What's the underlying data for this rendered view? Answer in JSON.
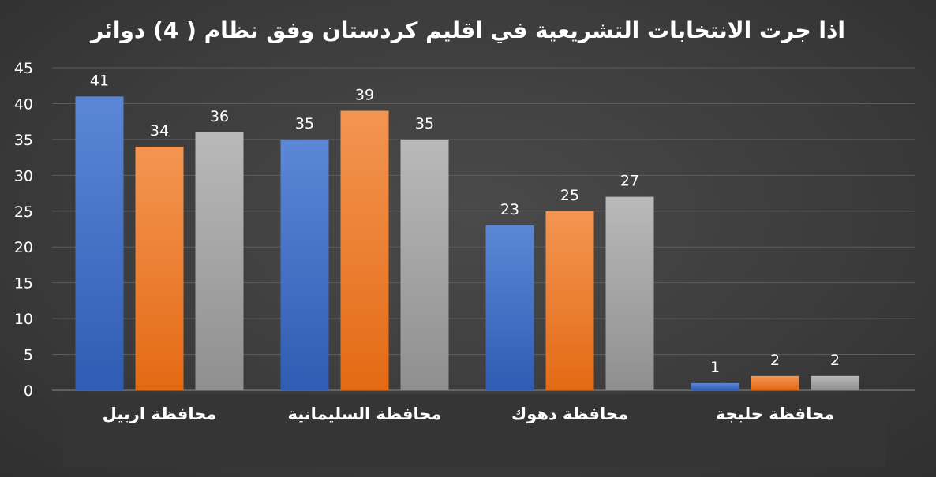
{
  "chart_data": {
    "type": "bar",
    "title": "اذا جرت الانتخابات التشريعية في اقليم كردستان وفق نظام ( 4) دوائر",
    "categories": [
      "محافظة اربيل",
      "محافظة السليمانية",
      "محافظة دهوك",
      "محافظة حلبجة"
    ],
    "series": [
      {
        "values": [
          41,
          35,
          23,
          1
        ],
        "color": "#4472c4"
      },
      {
        "values": [
          34,
          39,
          25,
          2
        ],
        "color": "#ed7d31"
      },
      {
        "values": [
          36,
          35,
          27,
          2
        ],
        "color": "#a5a5a5"
      }
    ],
    "ylim": [
      0,
      45
    ],
    "yticks": [
      0,
      5,
      10,
      15,
      20,
      25,
      30,
      35,
      40,
      45
    ],
    "grid": true,
    "legend": "none",
    "data_labels": true
  }
}
